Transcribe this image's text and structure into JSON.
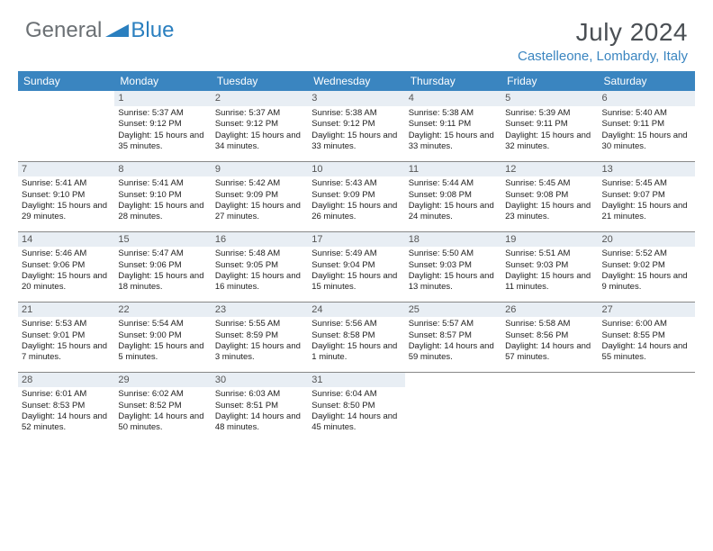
{
  "brand": {
    "part1": "General",
    "part2": "Blue",
    "logo_color": "#2a7fbf",
    "text_color": "#6b7074"
  },
  "title": "July 2024",
  "location": "Castelleone, Lombardy, Italy",
  "header_bg": "#3a85c0",
  "daynum_bg": "#e8eef4",
  "border_color": "#888888",
  "weekdays": [
    "Sunday",
    "Monday",
    "Tuesday",
    "Wednesday",
    "Thursday",
    "Friday",
    "Saturday"
  ],
  "weeks": [
    [
      null,
      {
        "n": "1",
        "sr": "5:37 AM",
        "ss": "9:12 PM",
        "dl": "15 hours and 35 minutes."
      },
      {
        "n": "2",
        "sr": "5:37 AM",
        "ss": "9:12 PM",
        "dl": "15 hours and 34 minutes."
      },
      {
        "n": "3",
        "sr": "5:38 AM",
        "ss": "9:12 PM",
        "dl": "15 hours and 33 minutes."
      },
      {
        "n": "4",
        "sr": "5:38 AM",
        "ss": "9:11 PM",
        "dl": "15 hours and 33 minutes."
      },
      {
        "n": "5",
        "sr": "5:39 AM",
        "ss": "9:11 PM",
        "dl": "15 hours and 32 minutes."
      },
      {
        "n": "6",
        "sr": "5:40 AM",
        "ss": "9:11 PM",
        "dl": "15 hours and 30 minutes."
      }
    ],
    [
      {
        "n": "7",
        "sr": "5:41 AM",
        "ss": "9:10 PM",
        "dl": "15 hours and 29 minutes."
      },
      {
        "n": "8",
        "sr": "5:41 AM",
        "ss": "9:10 PM",
        "dl": "15 hours and 28 minutes."
      },
      {
        "n": "9",
        "sr": "5:42 AM",
        "ss": "9:09 PM",
        "dl": "15 hours and 27 minutes."
      },
      {
        "n": "10",
        "sr": "5:43 AM",
        "ss": "9:09 PM",
        "dl": "15 hours and 26 minutes."
      },
      {
        "n": "11",
        "sr": "5:44 AM",
        "ss": "9:08 PM",
        "dl": "15 hours and 24 minutes."
      },
      {
        "n": "12",
        "sr": "5:45 AM",
        "ss": "9:08 PM",
        "dl": "15 hours and 23 minutes."
      },
      {
        "n": "13",
        "sr": "5:45 AM",
        "ss": "9:07 PM",
        "dl": "15 hours and 21 minutes."
      }
    ],
    [
      {
        "n": "14",
        "sr": "5:46 AM",
        "ss": "9:06 PM",
        "dl": "15 hours and 20 minutes."
      },
      {
        "n": "15",
        "sr": "5:47 AM",
        "ss": "9:06 PM",
        "dl": "15 hours and 18 minutes."
      },
      {
        "n": "16",
        "sr": "5:48 AM",
        "ss": "9:05 PM",
        "dl": "15 hours and 16 minutes."
      },
      {
        "n": "17",
        "sr": "5:49 AM",
        "ss": "9:04 PM",
        "dl": "15 hours and 15 minutes."
      },
      {
        "n": "18",
        "sr": "5:50 AM",
        "ss": "9:03 PM",
        "dl": "15 hours and 13 minutes."
      },
      {
        "n": "19",
        "sr": "5:51 AM",
        "ss": "9:03 PM",
        "dl": "15 hours and 11 minutes."
      },
      {
        "n": "20",
        "sr": "5:52 AM",
        "ss": "9:02 PM",
        "dl": "15 hours and 9 minutes."
      }
    ],
    [
      {
        "n": "21",
        "sr": "5:53 AM",
        "ss": "9:01 PM",
        "dl": "15 hours and 7 minutes."
      },
      {
        "n": "22",
        "sr": "5:54 AM",
        "ss": "9:00 PM",
        "dl": "15 hours and 5 minutes."
      },
      {
        "n": "23",
        "sr": "5:55 AM",
        "ss": "8:59 PM",
        "dl": "15 hours and 3 minutes."
      },
      {
        "n": "24",
        "sr": "5:56 AM",
        "ss": "8:58 PM",
        "dl": "15 hours and 1 minute."
      },
      {
        "n": "25",
        "sr": "5:57 AM",
        "ss": "8:57 PM",
        "dl": "14 hours and 59 minutes."
      },
      {
        "n": "26",
        "sr": "5:58 AM",
        "ss": "8:56 PM",
        "dl": "14 hours and 57 minutes."
      },
      {
        "n": "27",
        "sr": "6:00 AM",
        "ss": "8:55 PM",
        "dl": "14 hours and 55 minutes."
      }
    ],
    [
      {
        "n": "28",
        "sr": "6:01 AM",
        "ss": "8:53 PM",
        "dl": "14 hours and 52 minutes."
      },
      {
        "n": "29",
        "sr": "6:02 AM",
        "ss": "8:52 PM",
        "dl": "14 hours and 50 minutes."
      },
      {
        "n": "30",
        "sr": "6:03 AM",
        "ss": "8:51 PM",
        "dl": "14 hours and 48 minutes."
      },
      {
        "n": "31",
        "sr": "6:04 AM",
        "ss": "8:50 PM",
        "dl": "14 hours and 45 minutes."
      },
      null,
      null,
      null
    ]
  ]
}
